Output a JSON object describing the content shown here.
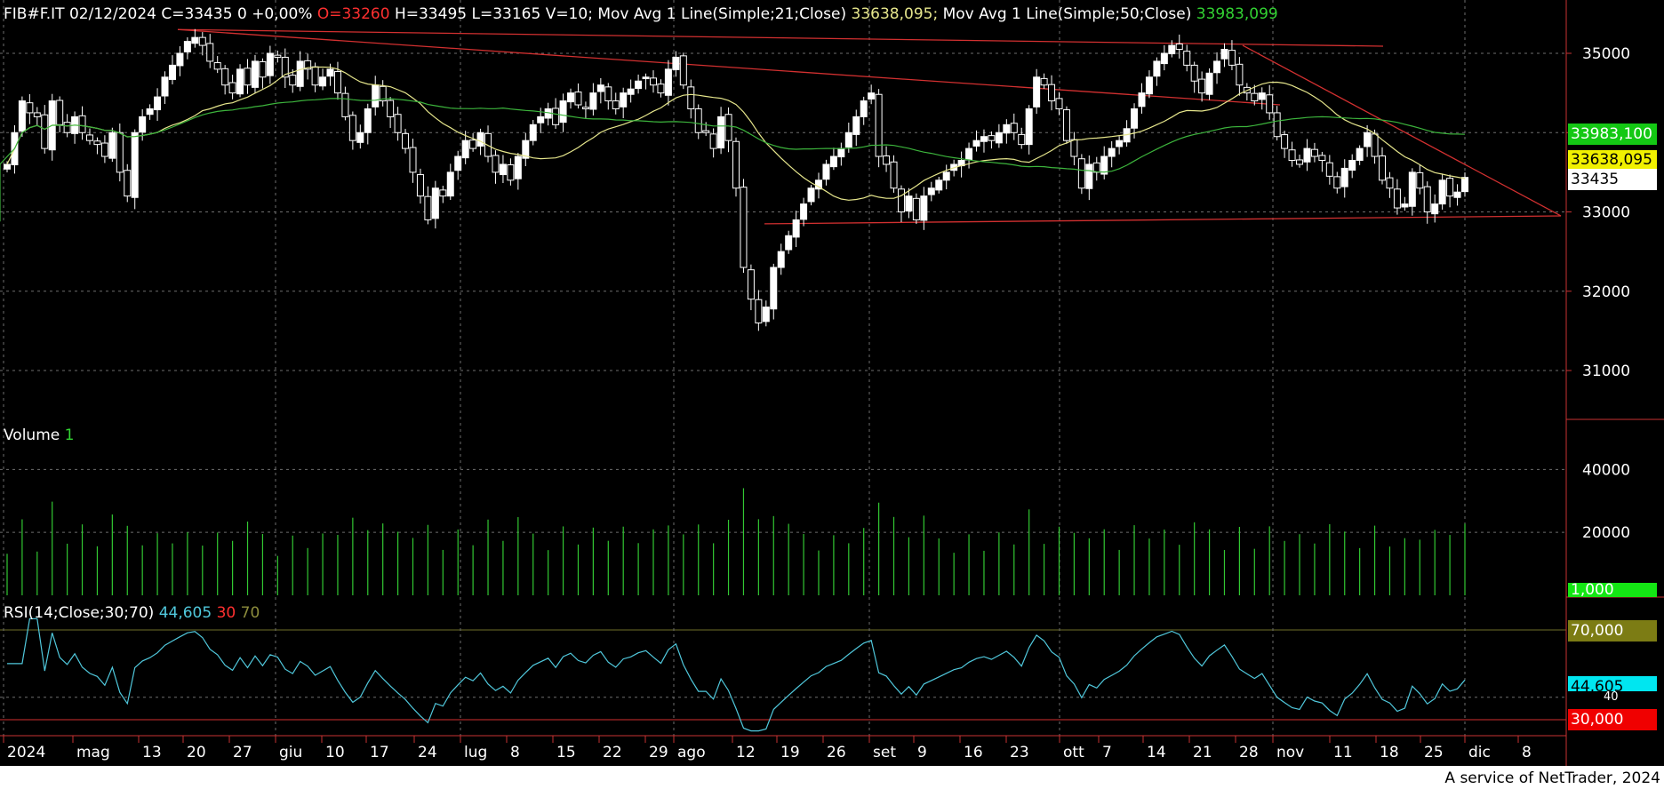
{
  "header": {
    "symbol": "FIB#F.IT",
    "date": "02/12/2024",
    "close": "C=33435",
    "change": "0 +0,00%",
    "open": "O=33260",
    "high": "H=33495",
    "low": "L=33165",
    "volume": "V=10;",
    "ma1_label": "Mov Avg 1 Line(Simple;21;Close)",
    "ma1_value": "33638,095;",
    "ma2_label": "Mov Avg 1 Line(Simple;50;Close)",
    "ma2_value": "33983,099"
  },
  "volume_header": {
    "label": "Volume",
    "value": "1"
  },
  "rsi_header": {
    "label": "RSI(14;Close;30;70)",
    "value": "44,605",
    "low": "30",
    "high": "70"
  },
  "footer": "A service of NetTrader, 2024",
  "colors": {
    "background": "#000000",
    "candle_up": "#ffffff",
    "ma21": "#e6e68c",
    "ma50": "#3cb43c",
    "trendline": "#d23030",
    "volume": "#32c832",
    "rsi": "#50c8dc",
    "rsi_bands": "#6e6e28"
  },
  "tags": {
    "ma50": "33983,100",
    "ma21": "33638,095",
    "last": "33435",
    "volume": "1,000",
    "rsi70": "70,000",
    "rsi": "44,605",
    "rsi_ghost": "40",
    "rsi30": "30,000"
  },
  "chart_data": {
    "type": "candlestick",
    "price_axis": {
      "ticks": [
        "35000",
        "34000",
        "33000",
        "32000",
        "31000"
      ],
      "range": [
        30500,
        35600
      ]
    },
    "volume_axis": {
      "ticks": [
        "40000",
        "20000"
      ],
      "range": [
        0,
        48000
      ]
    },
    "x_labels": [
      "2024",
      "mag",
      "13",
      "20",
      "27",
      "giu",
      "10",
      "17",
      "24",
      "lug",
      "8",
      "15",
      "22",
      "29",
      "ago",
      "12",
      "19",
      "26",
      "set",
      "9",
      "16",
      "23",
      "ott",
      "7",
      "14",
      "21",
      "28",
      "nov",
      "11",
      "18",
      "25",
      "dic",
      "8"
    ],
    "closes": [
      33600,
      34000,
      34400,
      34250,
      34200,
      33800,
      34400,
      34100,
      34000,
      34200,
      34000,
      33900,
      33850,
      33700,
      34000,
      33500,
      33200,
      34000,
      34200,
      34300,
      34450,
      34700,
      34850,
      35000,
      35150,
      35200,
      35100,
      34900,
      34800,
      34600,
      34500,
      34800,
      34600,
      34900,
      34700,
      35000,
      34950,
      34700,
      34600,
      34900,
      34800,
      34600,
      34700,
      34800,
      34500,
      34200,
      33900,
      34000,
      34300,
      34600,
      34400,
      34200,
      34000,
      33800,
      33500,
      33200,
      32900,
      33300,
      33200,
      33500,
      33700,
      33900,
      33800,
      34000,
      33700,
      33500,
      33600,
      33400,
      33700,
      33900,
      34100,
      34200,
      34300,
      34100,
      34400,
      34500,
      34350,
      34300,
      34500,
      34600,
      34400,
      34300,
      34500,
      34550,
      34650,
      34700,
      34600,
      34500,
      34800,
      34950,
      34600,
      34300,
      34000,
      34000,
      33800,
      34200,
      33900,
      33300,
      32300,
      31900,
      31600,
      31800,
      32300,
      32500,
      32700,
      32900,
      33100,
      33300,
      33400,
      33600,
      33700,
      33800,
      34000,
      34200,
      34400,
      34500,
      33700,
      33600,
      33300,
      33000,
      33200,
      32900,
      33200,
      33300,
      33400,
      33500,
      33600,
      33650,
      33800,
      33900,
      33950,
      33900,
      34000,
      34100,
      34000,
      33850,
      34300,
      34700,
      34600,
      34400,
      34300,
      33900,
      33700,
      33300,
      33600,
      33500,
      33700,
      33800,
      33900,
      34050,
      34300,
      34500,
      34700,
      34900,
      35000,
      35100,
      35050,
      34850,
      34650,
      34500,
      34750,
      34900,
      35050,
      34850,
      34600,
      34500,
      34400,
      34500,
      34250,
      33950,
      33800,
      33650,
      33600,
      33800,
      33700,
      33650,
      33450,
      33300,
      33550,
      33650,
      33800,
      34000,
      33700,
      33400,
      33300,
      33050,
      33100,
      33500,
      33300,
      33000,
      33100,
      33400,
      33200,
      33250,
      33435
    ],
    "ma21_last": 33638.095,
    "ma50_last": 33983.099,
    "rsi_last": 44.605,
    "rsi_levels": [
      30,
      70
    ],
    "legend_position": "top-left"
  }
}
